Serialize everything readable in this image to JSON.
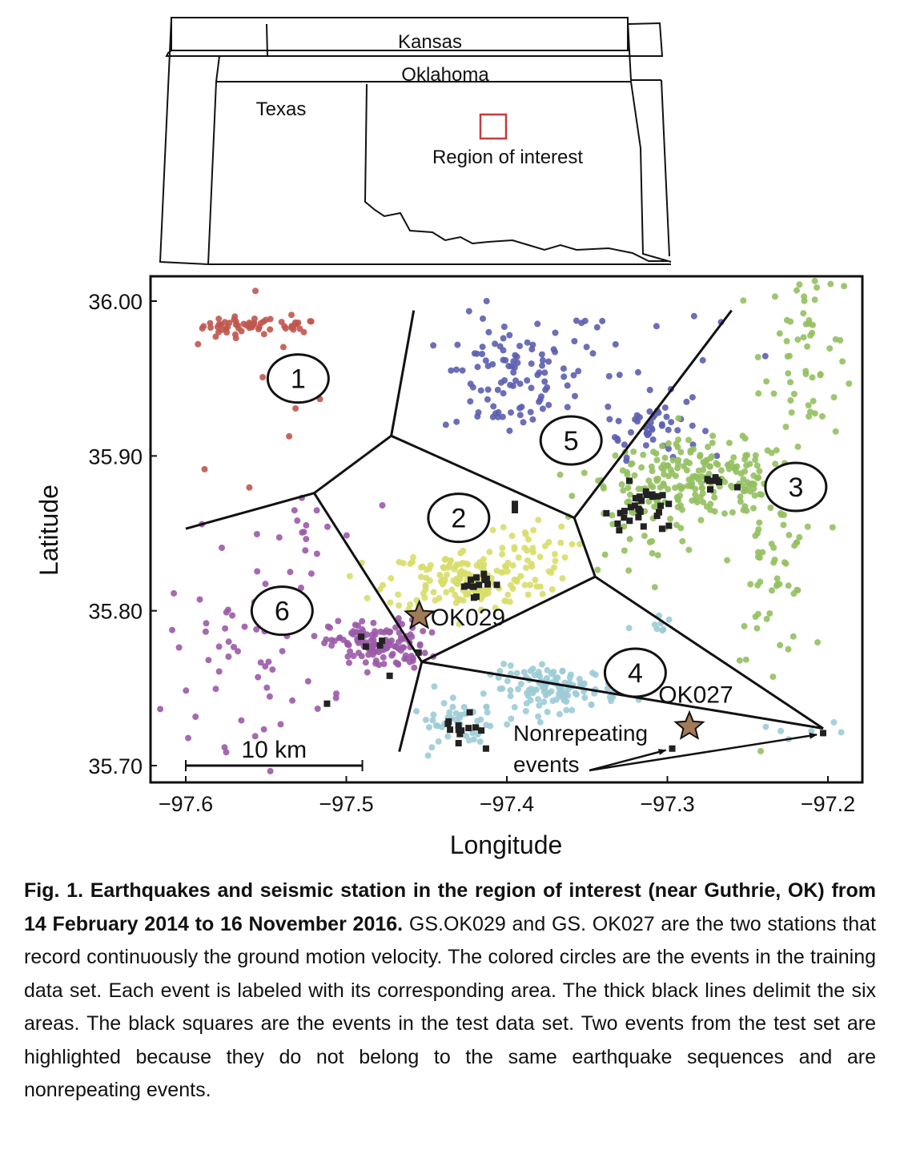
{
  "inset_map": {
    "labels": [
      "Kansas",
      "Oklahoma",
      "Texas",
      "Region of interest"
    ],
    "roi_color": "#c8383a"
  },
  "chart_data": {
    "type": "scatter",
    "xlabel": "Longitude",
    "ylabel": "Latitude",
    "xlim": [
      -97.62,
      -97.18
    ],
    "ylim": [
      35.685,
      36.015
    ],
    "xticks": [
      -97.6,
      -97.5,
      -97.4,
      -97.3,
      -97.2
    ],
    "xtick_labels": [
      "−97.6",
      "−97.5",
      "−97.4",
      "−97.3",
      "−97.2"
    ],
    "yticks": [
      35.7,
      35.8,
      35.9,
      36.0
    ],
    "ytick_labels": [
      "35.70",
      "35.80",
      "35.90",
      "36.00"
    ],
    "grid": false,
    "area_colors": {
      "1": "#c0574e",
      "2": "#d8dd6a",
      "3": "#93c060",
      "4": "#9ccbd6",
      "5": "#5c5eb0",
      "6": "#9b5aa8"
    },
    "area_labels": [
      {
        "label": "1",
        "x": -97.53,
        "y": 35.95
      },
      {
        "label": "2",
        "x": -97.43,
        "y": 35.86
      },
      {
        "label": "3",
        "x": -97.22,
        "y": 35.88
      },
      {
        "label": "4",
        "x": -97.32,
        "y": 35.76
      },
      {
        "label": "5",
        "x": -97.36,
        "y": 35.91
      },
      {
        "label": "6",
        "x": -97.54,
        "y": 35.8
      }
    ],
    "boundaries": [
      [
        [
          -97.6,
          35.853
        ],
        [
          -97.52,
          35.876
        ]
      ],
      [
        [
          -97.52,
          35.876
        ],
        [
          -97.472,
          35.913
        ]
      ],
      [
        [
          -97.472,
          35.913
        ],
        [
          -97.458,
          35.994
        ]
      ],
      [
        [
          -97.472,
          35.913
        ],
        [
          -97.358,
          35.86
        ]
      ],
      [
        [
          -97.358,
          35.86
        ],
        [
          -97.26,
          35.994
        ]
      ],
      [
        [
          -97.358,
          35.86
        ],
        [
          -97.345,
          35.822
        ]
      ],
      [
        [
          -97.345,
          35.822
        ],
        [
          -97.203,
          35.724
        ]
      ],
      [
        [
          -97.203,
          35.724
        ],
        [
          -97.453,
          35.767
        ]
      ],
      [
        [
          -97.453,
          35.767
        ],
        [
          -97.345,
          35.822
        ]
      ],
      [
        [
          -97.453,
          35.767
        ],
        [
          -97.467,
          35.709
        ]
      ],
      [
        [
          -97.52,
          35.876
        ],
        [
          -97.453,
          35.767
        ]
      ]
    ],
    "clusters": [
      {
        "area": "1",
        "n": 42,
        "cx": -97.565,
        "cy": 35.984,
        "sx": 0.012,
        "sy": 0.003
      },
      {
        "area": "1",
        "n": 14,
        "cx": -97.53,
        "cy": 35.984,
        "sx": 0.005,
        "sy": 0.002
      },
      {
        "area": "1",
        "n": 12,
        "cx": -97.56,
        "cy": 35.94,
        "sx": 0.03,
        "sy": 0.04
      },
      {
        "area": "5",
        "n": 90,
        "cx": -97.4,
        "cy": 35.95,
        "sx": 0.02,
        "sy": 0.02
      },
      {
        "area": "5",
        "n": 50,
        "cx": -97.31,
        "cy": 35.92,
        "sx": 0.015,
        "sy": 0.01
      },
      {
        "area": "5",
        "n": 25,
        "cx": -97.35,
        "cy": 35.97,
        "sx": 0.04,
        "sy": 0.02
      },
      {
        "area": "3",
        "n": 200,
        "cx": -97.28,
        "cy": 35.885,
        "sx": 0.03,
        "sy": 0.012
      },
      {
        "area": "3",
        "n": 60,
        "cx": -97.21,
        "cy": 35.97,
        "sx": 0.015,
        "sy": 0.03
      },
      {
        "area": "3",
        "n": 60,
        "cx": -97.235,
        "cy": 35.83,
        "sx": 0.012,
        "sy": 0.03
      },
      {
        "area": "3",
        "n": 40,
        "cx": -97.32,
        "cy": 35.86,
        "sx": 0.02,
        "sy": 0.02
      },
      {
        "area": "2",
        "n": 160,
        "cx": -97.425,
        "cy": 35.82,
        "sx": 0.025,
        "sy": 0.01
      },
      {
        "area": "2",
        "n": 30,
        "cx": -97.39,
        "cy": 35.84,
        "sx": 0.015,
        "sy": 0.008
      },
      {
        "area": "6",
        "n": 130,
        "cx": -97.48,
        "cy": 35.778,
        "sx": 0.015,
        "sy": 0.008
      },
      {
        "area": "6",
        "n": 60,
        "cx": -97.56,
        "cy": 35.775,
        "sx": 0.025,
        "sy": 0.03
      },
      {
        "area": "6",
        "n": 15,
        "cx": -97.53,
        "cy": 35.85,
        "sx": 0.02,
        "sy": 0.015
      },
      {
        "area": "4",
        "n": 120,
        "cx": -97.37,
        "cy": 35.75,
        "sx": 0.02,
        "sy": 0.007
      },
      {
        "area": "4",
        "n": 40,
        "cx": -97.43,
        "cy": 35.727,
        "sx": 0.015,
        "sy": 0.007
      },
      {
        "area": "4",
        "n": 8,
        "cx": -97.3,
        "cy": 35.79,
        "sx": 0.01,
        "sy": 0.005
      },
      {
        "area": "4",
        "n": 6,
        "cx": -97.22,
        "cy": 35.72,
        "sx": 0.015,
        "sy": 0.006
      }
    ],
    "test_events": [
      {
        "area": "2",
        "n": 14,
        "cx": -97.42,
        "cy": 35.818,
        "sx": 0.005,
        "sy": 0.004
      },
      {
        "area": "3",
        "n": 28,
        "cx": -97.315,
        "cy": 35.866,
        "sx": 0.008,
        "sy": 0.008
      },
      {
        "area": "3",
        "n": 8,
        "cx": -97.27,
        "cy": 35.882,
        "sx": 0.005,
        "sy": 0.003
      },
      {
        "area": "6",
        "n": 4,
        "cx": -97.485,
        "cy": 35.78,
        "sx": 0.008,
        "sy": 0.003
      },
      {
        "area": "4",
        "n": 12,
        "cx": -97.43,
        "cy": 35.724,
        "sx": 0.006,
        "sy": 0.004
      }
    ],
    "test_event_points": [
      [
        -97.395,
        35.869
      ],
      [
        -97.395,
        35.865
      ],
      [
        -97.473,
        35.758
      ],
      [
        -97.512,
        35.74
      ],
      [
        -97.413,
        35.711
      ],
      [
        -97.297,
        35.711
      ],
      [
        -97.203,
        35.721
      ],
      [
        -97.455,
        35.773
      ],
      [
        -97.33,
        35.852
      ],
      [
        -97.338,
        35.863
      ]
    ],
    "stations": [
      {
        "name": "OK029",
        "x": -97.4545,
        "y": 35.7967,
        "color": "#a17a58"
      },
      {
        "name": "OK027",
        "x": -97.2863,
        "y": 35.7252,
        "color": "#a17a58"
      }
    ],
    "annotation": {
      "text_line1": "Nonrepeating",
      "text_line2": "events",
      "targets": [
        [
          -97.297,
          35.711
        ],
        [
          -97.203,
          35.721
        ]
      ]
    },
    "scale_bar": {
      "label": "10 km",
      "x0": -97.6,
      "x1": -97.49,
      "y": 35.7
    }
  },
  "caption": {
    "bold": "Fig. 1. Earthquakes and seismic station in the region of interest (near Guthrie, OK) from 14 February 2014 to 16 November 2016.",
    "body": " GS.OK029 and GS. OK027 are the two stations that record continuously the ground motion velocity. The colored circles are the events in the training data set. Each event is labeled with its corresponding area. The thick black lines delimit the six areas. The black squares are the events in the test data set. Two events from the test set are highlighted because they do not belong to the same earthquake sequences and are nonrepeating events."
  }
}
